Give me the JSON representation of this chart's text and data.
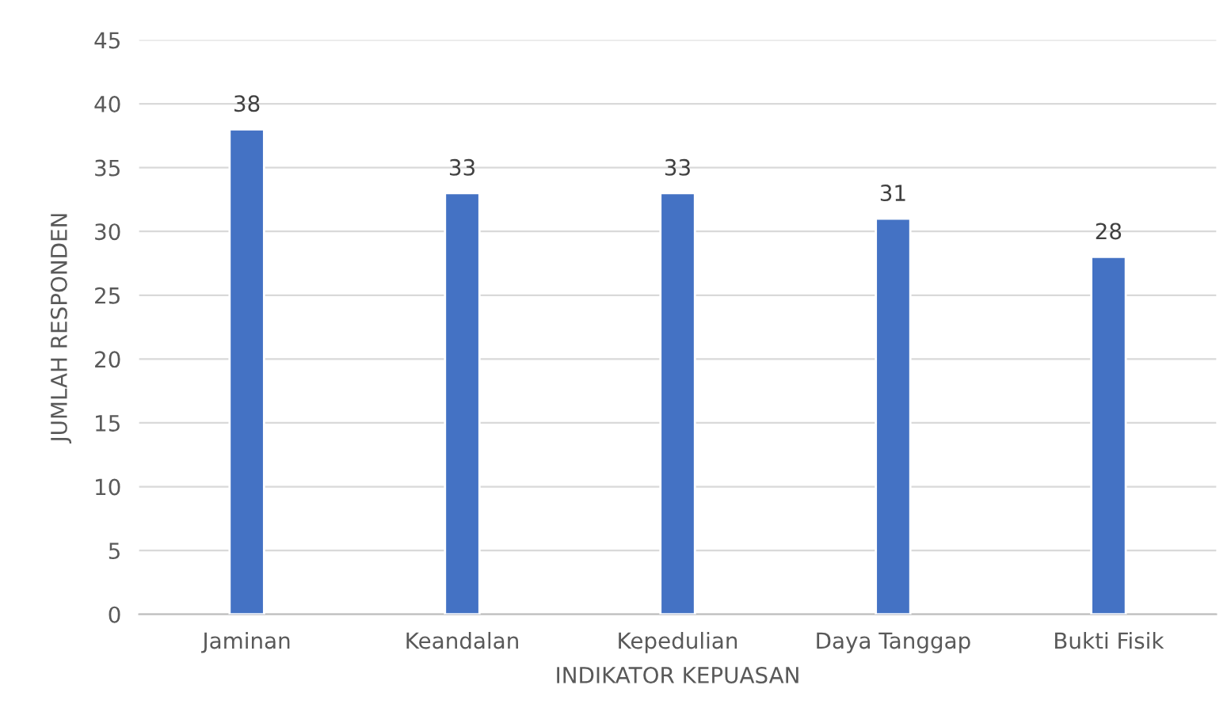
{
  "chart_data": {
    "type": "bar",
    "xlabel": "INDIKATOR KEPUASAN",
    "ylabel": "JUMLAH RESPONDEN",
    "categories": [
      "Jaminan",
      "Keandalan",
      "Kepedulian",
      "Daya Tanggap",
      "Bukti Fisik"
    ],
    "values": [
      38,
      33,
      33,
      31,
      28
    ],
    "color": "#4472c4",
    "ylim": [
      0,
      45
    ],
    "yticks": [
      0,
      5,
      10,
      15,
      20,
      25,
      30,
      35,
      40,
      45
    ],
    "grid": "y",
    "data_labels": true
  }
}
